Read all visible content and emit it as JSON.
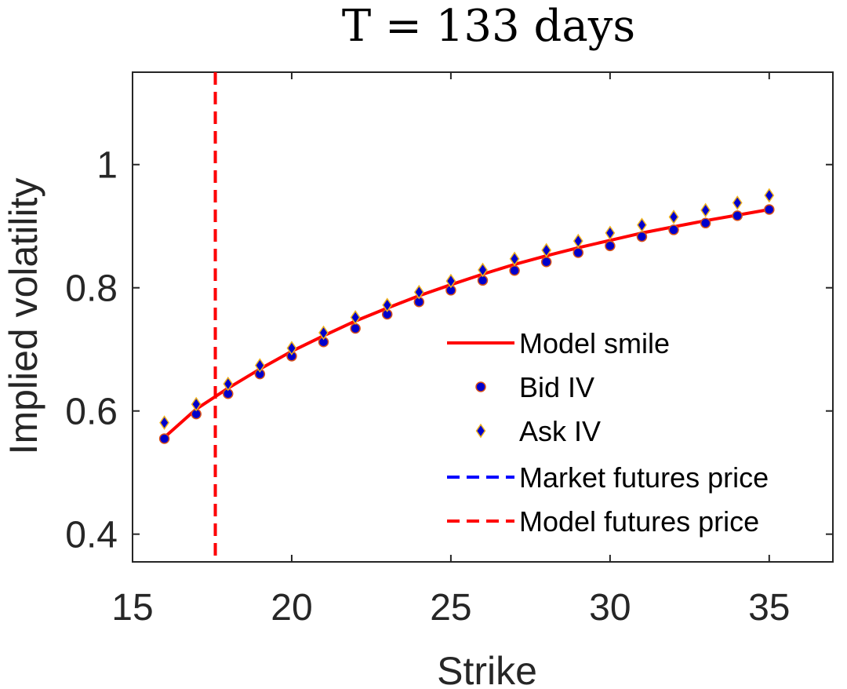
{
  "chart_data": {
    "type": "line",
    "title": "T = 133 days",
    "xlabel": "Strike",
    "ylabel": "Implied volatility",
    "xlim": [
      15,
      37
    ],
    "ylim": [
      0.355,
      1.15
    ],
    "xticks": [
      15,
      20,
      25,
      30,
      35
    ],
    "xtick_labels": [
      "15",
      "20",
      "25",
      "30",
      "35"
    ],
    "yticks": [
      0.4,
      0.6,
      0.8,
      1.0
    ],
    "ytick_labels": [
      "0.4",
      "0.6",
      "0.8",
      "1"
    ],
    "grid": false,
    "legend_position": "lower-right",
    "series": [
      {
        "name": "Model smile",
        "kind": "line",
        "color": "#ff0000",
        "x": [
          16,
          17,
          18,
          19,
          20,
          21,
          22,
          23,
          24,
          25,
          26,
          27,
          28,
          29,
          30,
          31,
          32,
          33,
          34,
          35
        ],
        "y": [
          0.557,
          0.603,
          0.637,
          0.668,
          0.697,
          0.722,
          0.746,
          0.767,
          0.787,
          0.805,
          0.822,
          0.838,
          0.852,
          0.865,
          0.877,
          0.889,
          0.899,
          0.909,
          0.918,
          0.927
        ]
      },
      {
        "name": "Bid IV",
        "kind": "marker-circle",
        "color": "#0000cc",
        "edge_color": "#d95319",
        "x": [
          16,
          17,
          18,
          19,
          20,
          21,
          22,
          23,
          24,
          25,
          26,
          27,
          28,
          29,
          30,
          31,
          32,
          33,
          34,
          35
        ],
        "y": [
          0.555,
          0.595,
          0.628,
          0.66,
          0.689,
          0.712,
          0.734,
          0.757,
          0.777,
          0.796,
          0.812,
          0.828,
          0.842,
          0.857,
          0.868,
          0.883,
          0.894,
          0.905,
          0.917,
          0.927
        ]
      },
      {
        "name": "Ask IV",
        "kind": "marker-diamond",
        "color": "#0000cc",
        "edge_color": "#edb120",
        "x": [
          16,
          17,
          18,
          19,
          20,
          21,
          22,
          23,
          24,
          25,
          26,
          27,
          28,
          29,
          30,
          31,
          32,
          33,
          34,
          35
        ],
        "y": [
          0.581,
          0.611,
          0.644,
          0.674,
          0.702,
          0.727,
          0.752,
          0.772,
          0.793,
          0.811,
          0.829,
          0.847,
          0.861,
          0.876,
          0.889,
          0.902,
          0.915,
          0.926,
          0.938,
          0.95
        ]
      },
      {
        "name": "Market futures price",
        "kind": "vline-dashed",
        "color": "#0000ff",
        "x": 17.6
      },
      {
        "name": "Model futures price",
        "kind": "vline-dashed",
        "color": "#ff0000",
        "x": 17.6
      }
    ]
  }
}
